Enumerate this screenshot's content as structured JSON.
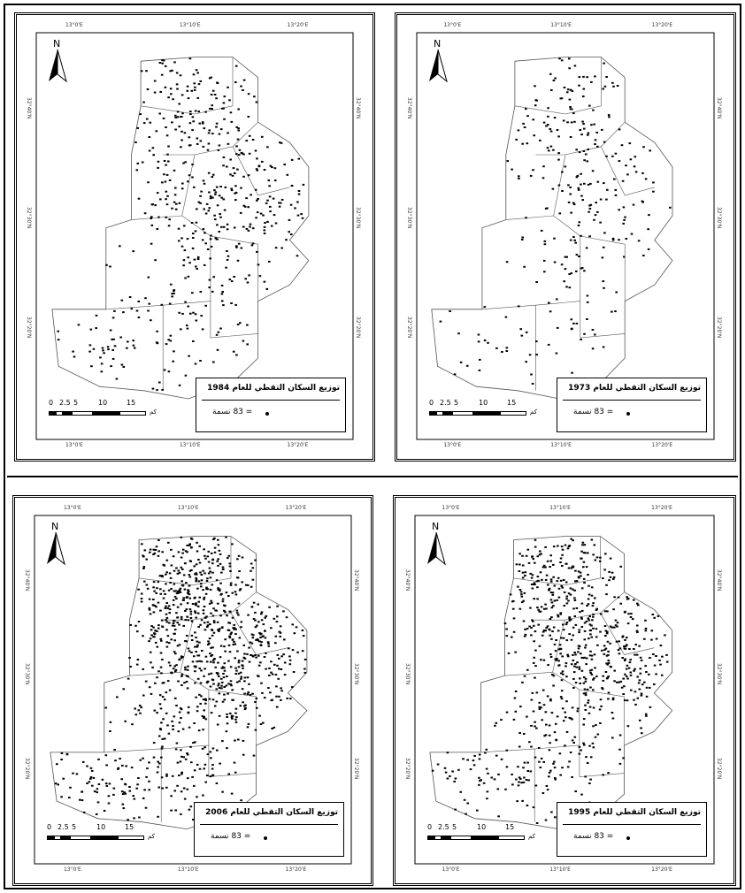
{
  "panels": [
    {
      "id": "p1984",
      "title": "توزيع السكان التقطي للعام 1984",
      "legend_text": "= 83 نسمة",
      "north": "N",
      "scale_labels": [
        "0",
        "2.5",
        "5",
        "10",
        "15"
      ],
      "scale_unit": "كم",
      "has_scalebar": true,
      "density": 1.0,
      "seed": 11
    },
    {
      "id": "p1973",
      "title": "توزيع السكان التقطي للعام 1973",
      "legend_text": "= 83 نسمة",
      "north": "N",
      "scale_labels": [
        "0",
        "2.5",
        "5",
        "10",
        "15"
      ],
      "scale_unit": "كم",
      "has_scalebar": true,
      "density": 0.55,
      "seed": 23
    },
    {
      "id": "p2006",
      "title": "توزيع السكان التقطي للعام 2006",
      "legend_text": "= 83 نسمة",
      "north": "N",
      "scale_labels": [
        "0",
        "2.5",
        "5",
        "10",
        "15"
      ],
      "scale_unit": "كم",
      "has_scalebar": true,
      "density": 1.9,
      "seed": 37
    },
    {
      "id": "p1995",
      "title": "توزيع السكان التقطي للعام 1995",
      "legend_text": "= 83 نسمة",
      "north": "N",
      "scale_labels": [
        "0",
        "2.5",
        "5",
        "10",
        "15"
      ],
      "scale_unit": "كم",
      "has_scalebar": true,
      "density": 1.45,
      "seed": 53
    }
  ],
  "coords": {
    "top": [
      "13°0'E",
      "13°10'E",
      "13°20'E"
    ],
    "side": [
      "32°40'N",
      "32°30'N",
      "32°20'N"
    ]
  },
  "colors": {
    "dot": "#000000",
    "boundary": "#555555",
    "frame": "#000000"
  }
}
